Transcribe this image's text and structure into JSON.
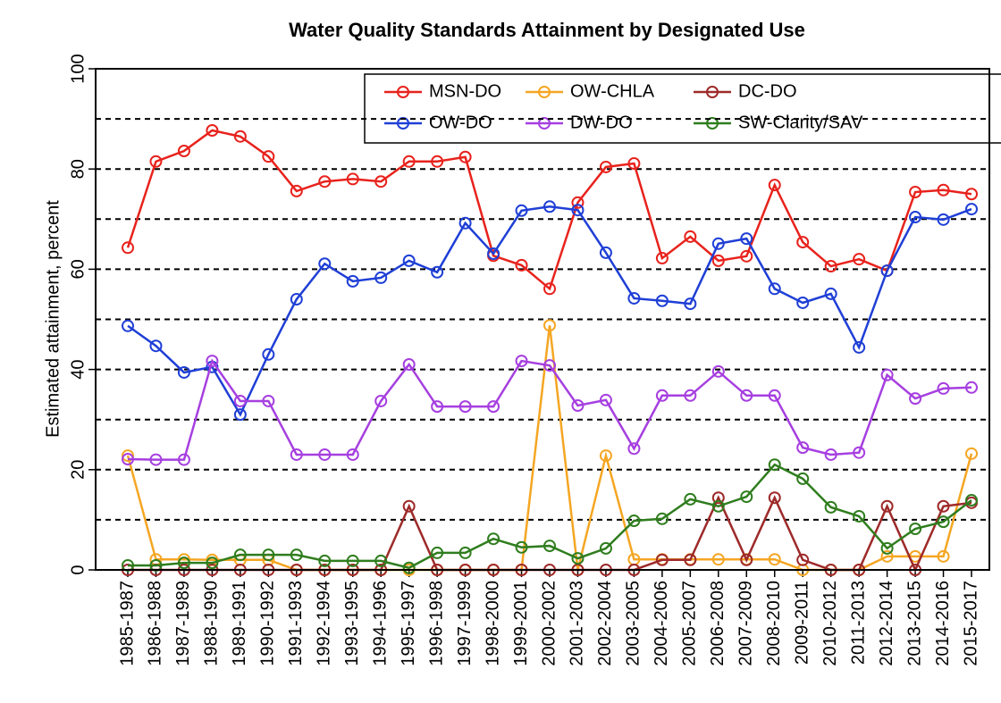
{
  "chart_data": {
    "type": "line",
    "title": "Water Quality Standards Attainment by Designated Use",
    "y_label": "Estimated attainment, percent",
    "categories": [
      "1985-1987",
      "1986-1988",
      "1987-1989",
      "1988-1990",
      "1989-1991",
      "1990-1992",
      "1991-1993",
      "1992-1994",
      "1993-1995",
      "1994-1996",
      "1995-1997",
      "1996-1998",
      "1997-1999",
      "1998-2000",
      "1999-2001",
      "2000-2002",
      "2001-2003",
      "2002-2004",
      "2003-2005",
      "2004-2006",
      "2005-2007",
      "2006-2008",
      "2007-2009",
      "2008-2010",
      "2009-2011",
      "2010-2012",
      "2011-2013",
      "2012-2014",
      "2013-2015",
      "2014-2016",
      "2015-2017"
    ],
    "series": [
      {
        "name": "MSN-DO",
        "color": "#e8221c",
        "values": [
          64.3,
          81.5,
          83.6,
          87.7,
          86.5,
          82.5,
          75.6,
          77.5,
          78,
          77.5,
          81.5,
          81.5,
          82.4,
          62.7,
          60.8,
          56.1,
          73.3,
          80.4,
          81.1,
          62.2,
          66.5,
          61.7,
          62.6,
          76.8,
          65.4,
          60.6,
          62,
          59.7,
          75.4,
          75.8,
          75
        ]
      },
      {
        "name": "OW-DO",
        "color": "#1f3fd6",
        "values": [
          48.7,
          44.7,
          39.4,
          40.5,
          31,
          43,
          54,
          61.1,
          57.6,
          58.3,
          61.7,
          59.4,
          69.2,
          63.1,
          71.7,
          72.5,
          71.8,
          63.3,
          54.2,
          53.7,
          53.1,
          65.1,
          66.1,
          56.1,
          53.3,
          55.1,
          44.4,
          59.7,
          70.4,
          69.9,
          72
        ]
      },
      {
        "name": "OW-CHLA",
        "color": "#f5a623",
        "values": [
          22.8,
          2.1,
          2.1,
          2,
          2,
          2,
          0,
          0,
          0,
          0,
          0,
          0,
          0,
          0,
          0,
          48.8,
          0,
          22.8,
          2.1,
          2.1,
          2.1,
          2.1,
          2.1,
          2.1,
          0,
          0,
          0,
          2.7,
          2.7,
          2.7,
          23.2
        ]
      },
      {
        "name": "DW-DO",
        "color": "#a63fe0",
        "values": [
          22.1,
          22,
          22,
          41.7,
          33.7,
          33.7,
          23,
          23,
          23,
          33.7,
          41,
          32.6,
          32.6,
          32.6,
          41.7,
          40.8,
          32.8,
          33.9,
          24.2,
          34.8,
          34.8,
          39.6,
          34.8,
          34.8,
          24.4,
          23,
          23.4,
          38.9,
          34.2,
          36.2,
          36.4
        ]
      },
      {
        "name": "DC-DO",
        "color": "#9e2a2a",
        "values": [
          0,
          0,
          0,
          0,
          0,
          0,
          0,
          0,
          0,
          0,
          12.7,
          0,
          0,
          0,
          0,
          0,
          0,
          0,
          0,
          2,
          2,
          14.4,
          2,
          14.4,
          2,
          0,
          0,
          12.7,
          0,
          12.7,
          13.4
        ]
      },
      {
        "name": "SW-Clarity/SAV",
        "color": "#2f7d1e",
        "values": [
          0.9,
          0.9,
          1.4,
          1.4,
          3,
          3,
          3,
          1.8,
          1.8,
          1.8,
          0.4,
          3.4,
          3.4,
          6.2,
          4.5,
          4.8,
          2.3,
          4.3,
          9.8,
          10.2,
          14.1,
          12.7,
          14.6,
          21,
          18.2,
          12.5,
          10.7,
          4.3,
          8.2,
          9.6,
          13.9
        ]
      }
    ],
    "ylim": [
      0,
      100
    ],
    "yticks": [
      0,
      20,
      40,
      60,
      80,
      100
    ],
    "grid_lines": [
      10,
      20,
      30,
      40,
      50,
      60,
      70,
      80,
      90
    ],
    "legend": "top-right"
  }
}
